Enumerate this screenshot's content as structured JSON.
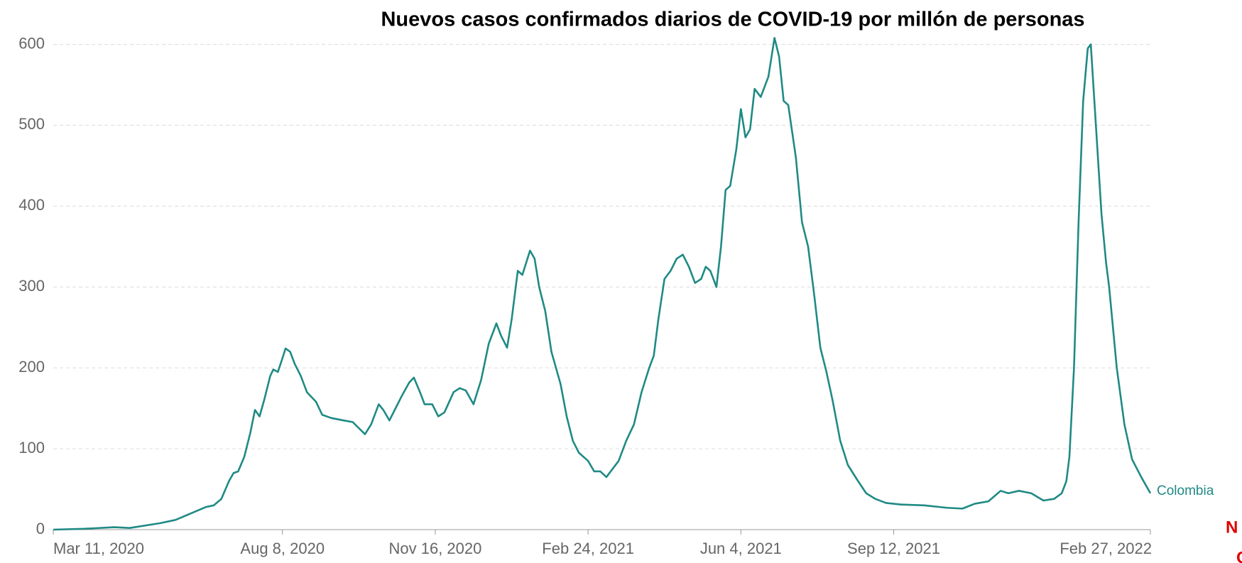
{
  "chart_data": {
    "type": "line",
    "title": "Nuevos casos confirmados diarios de COVID-19 por millón de personas",
    "x": [
      "2020-03-11",
      "2020-03-31",
      "2020-04-20",
      "2020-04-30",
      "2020-05-20",
      "2020-05-30",
      "2020-06-09",
      "2020-06-19",
      "2020-06-24",
      "2020-06-29",
      "2020-07-04",
      "2020-07-07",
      "2020-07-10",
      "2020-07-14",
      "2020-07-18",
      "2020-07-21",
      "2020-07-24",
      "2020-07-27",
      "2020-07-31",
      "2020-08-02",
      "2020-08-05",
      "2020-08-08",
      "2020-08-10",
      "2020-08-13",
      "2020-08-16",
      "2020-08-20",
      "2020-08-24",
      "2020-08-30",
      "2020-09-03",
      "2020-09-09",
      "2020-09-17",
      "2020-09-23",
      "2020-10-01",
      "2020-10-05",
      "2020-10-10",
      "2020-10-13",
      "2020-10-17",
      "2020-10-21",
      "2020-10-25",
      "2020-10-30",
      "2020-11-02",
      "2020-11-06",
      "2020-11-09",
      "2020-11-14",
      "2020-11-18",
      "2020-11-22",
      "2020-11-28",
      "2020-12-02",
      "2020-12-06",
      "2020-12-11",
      "2020-12-16",
      "2020-12-21",
      "2020-12-26",
      "2020-12-29",
      "2021-01-02",
      "2021-01-05",
      "2021-01-09",
      "2021-01-12",
      "2021-01-17",
      "2021-01-20",
      "2021-01-23",
      "2021-01-27",
      "2021-01-31",
      "2021-02-06",
      "2021-02-10",
      "2021-02-14",
      "2021-02-18",
      "2021-02-24",
      "2021-02-28",
      "2021-03-04",
      "2021-03-08",
      "2021-03-12",
      "2021-03-16",
      "2021-03-21",
      "2021-03-26",
      "2021-03-31",
      "2021-04-05",
      "2021-04-08",
      "2021-04-11",
      "2021-04-15",
      "2021-04-19",
      "2021-04-23",
      "2021-04-27",
      "2021-05-01",
      "2021-05-05",
      "2021-05-09",
      "2021-05-12",
      "2021-05-15",
      "2021-05-19",
      "2021-05-22",
      "2021-05-25",
      "2021-05-28",
      "2021-06-01",
      "2021-06-04",
      "2021-06-07",
      "2021-06-10",
      "2021-06-13",
      "2021-06-17",
      "2021-06-22",
      "2021-06-26",
      "2021-06-29",
      "2021-07-02",
      "2021-07-05",
      "2021-07-10",
      "2021-07-14",
      "2021-07-18",
      "2021-07-22",
      "2021-07-26",
      "2021-07-30",
      "2021-08-03",
      "2021-08-08",
      "2021-08-13",
      "2021-08-19",
      "2021-08-25",
      "2021-08-31",
      "2021-09-07",
      "2021-09-17",
      "2021-10-02",
      "2021-10-17",
      "2021-10-27",
      "2021-11-04",
      "2021-11-13",
      "2021-11-21",
      "2021-11-26",
      "2021-12-03",
      "2021-12-11",
      "2021-12-19",
      "2021-12-26",
      "2021-12-31",
      "2022-01-03",
      "2022-01-05",
      "2022-01-08",
      "2022-01-11",
      "2022-01-14",
      "2022-01-17",
      "2022-01-19",
      "2022-01-21",
      "2022-01-24",
      "2022-01-26",
      "2022-01-29",
      "2022-01-31",
      "2022-02-05",
      "2022-02-10",
      "2022-02-15",
      "2022-02-21",
      "2022-02-27"
    ],
    "series": [
      {
        "name": "Colombia",
        "color": "#1f8a84",
        "values": [
          0,
          1,
          3,
          2,
          8,
          12,
          20,
          28,
          30,
          38,
          60,
          70,
          72,
          90,
          120,
          148,
          140,
          160,
          190,
          198,
          195,
          212,
          224,
          220,
          205,
          190,
          170,
          158,
          142,
          138,
          135,
          133,
          118,
          130,
          155,
          148,
          135,
          150,
          165,
          182,
          188,
          170,
          155,
          155,
          140,
          145,
          170,
          175,
          172,
          155,
          185,
          230,
          255,
          240,
          225,
          260,
          320,
          315,
          345,
          335,
          300,
          270,
          220,
          180,
          140,
          110,
          95,
          85,
          72,
          72,
          65,
          75,
          85,
          110,
          130,
          170,
          200,
          215,
          260,
          310,
          320,
          335,
          340,
          325,
          305,
          310,
          325,
          320,
          300,
          350,
          420,
          425,
          470,
          520,
          485,
          495,
          545,
          535,
          560,
          608,
          585,
          530,
          525,
          460,
          380,
          350,
          290,
          225,
          195,
          160,
          110,
          80,
          62,
          45,
          38,
          33,
          31,
          30,
          27,
          26,
          32,
          35,
          48,
          45,
          48,
          45,
          36,
          38,
          45,
          60,
          90,
          200,
          380,
          530,
          595,
          600,
          540,
          450,
          390,
          330,
          300,
          200,
          130,
          87,
          65,
          45
        ]
      }
    ],
    "xlim": [
      "2020-03-11",
      "2022-02-27"
    ],
    "xticks": [
      {
        "value": "2020-03-11",
        "label": "Mar 11, 2020"
      },
      {
        "value": "2020-08-08",
        "label": "Aug 8, 2020"
      },
      {
        "value": "2020-11-16",
        "label": "Nov 16, 2020"
      },
      {
        "value": "2021-02-24",
        "label": "Feb 24, 2021"
      },
      {
        "value": "2021-06-04",
        "label": "Jun 4, 2021"
      },
      {
        "value": "2021-09-12",
        "label": "Sep 12, 2021"
      },
      {
        "value": "2022-02-27",
        "label": "Feb 27, 2022"
      }
    ],
    "ylim": [
      0,
      600
    ],
    "yticks": [
      0,
      100,
      200,
      300,
      400,
      500,
      600
    ],
    "grid": true,
    "annotations": [
      {
        "text": "N",
        "color": "#e00000"
      },
      {
        "text": "C",
        "color": "#e00000"
      }
    ]
  }
}
